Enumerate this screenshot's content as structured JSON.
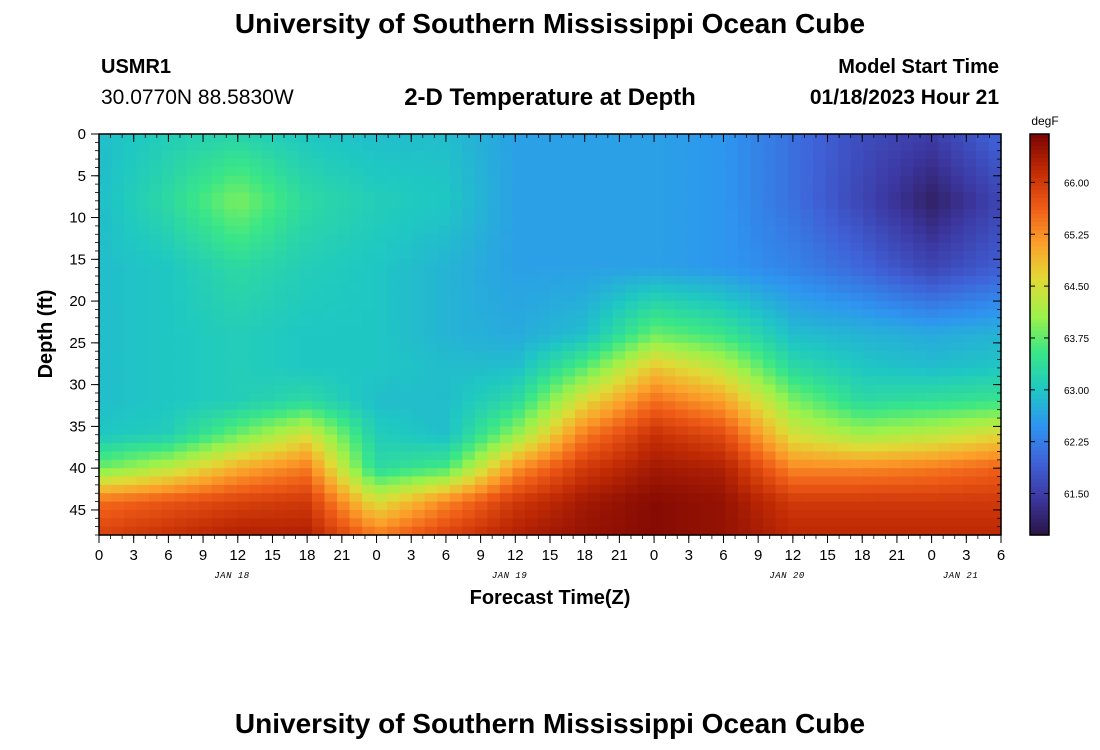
{
  "page": {
    "title": "University of Southern Mississippi Ocean Cube",
    "bottom_title": "University of Southern Mississippi Ocean Cube",
    "station_id": "USMR1",
    "coordinates": "30.0770N  88.5830W",
    "subtitle": "2-D Temperature at Depth",
    "model_start_label": "Model Start Time",
    "model_start_value": "01/18/2023 Hour 21"
  },
  "chart_data": {
    "type": "heatmap",
    "title": "2-D Temperature at Depth",
    "xlabel": "Forecast Time(Z)",
    "ylabel": "Depth (ft)",
    "x_range_hours": [
      0,
      78
    ],
    "x_tick_hours": [
      0,
      3,
      6,
      9,
      12,
      15,
      18,
      21,
      24,
      27,
      30,
      33,
      36,
      39,
      42,
      45,
      48,
      51,
      54,
      57,
      60,
      63,
      66,
      69,
      72,
      75,
      78
    ],
    "x_tick_labels": [
      "0",
      "3",
      "6",
      "9",
      "12",
      "15",
      "18",
      "21",
      "0",
      "3",
      "6",
      "9",
      "12",
      "15",
      "18",
      "21",
      "0",
      "3",
      "6",
      "9",
      "12",
      "15",
      "18",
      "21",
      "0",
      "3",
      "6"
    ],
    "date_labels": [
      {
        "hour": 11.5,
        "label": "JAN 18"
      },
      {
        "hour": 35.5,
        "label": "JAN 19"
      },
      {
        "hour": 59.5,
        "label": "JAN 20"
      },
      {
        "hour": 74.5,
        "label": "JAN 21"
      }
    ],
    "y_range_ft": [
      0,
      48
    ],
    "y_ticks": [
      0,
      5,
      10,
      15,
      20,
      25,
      30,
      35,
      40,
      45
    ],
    "y_inverted": true,
    "colorbar": {
      "units": "degF",
      "range": [
        60.9,
        66.7
      ],
      "ticks": [
        61.5,
        62.25,
        63.0,
        63.75,
        64.5,
        65.25,
        66.0
      ],
      "tick_labels": [
        "61.50",
        "62.25",
        "63.00",
        "63.75",
        "64.50",
        "65.25",
        "66.00"
      ],
      "colormap": [
        "#2a1443",
        "#3c37a0",
        "#3f62d8",
        "#2e95f0",
        "#1fc8c2",
        "#3ae687",
        "#9cf24a",
        "#e0da36",
        "#fca02a",
        "#ee5a16",
        "#c02a04",
        "#7a0403"
      ]
    },
    "grid": {
      "hours": [
        0,
        6,
        12,
        18,
        24,
        30,
        36,
        42,
        48,
        54,
        60,
        66,
        72,
        78
      ],
      "depths": [
        0,
        8,
        16,
        24,
        28,
        32,
        36,
        40,
        44,
        48
      ],
      "values": [
        [
          62.9,
          63.1,
          63.2,
          63.0,
          62.9,
          62.9,
          62.6,
          62.6,
          62.6,
          62.5,
          62.1,
          61.7,
          61.5,
          62.0
        ],
        [
          62.9,
          63.3,
          63.9,
          63.3,
          63.1,
          63.0,
          62.6,
          62.6,
          62.6,
          62.5,
          62.1,
          61.6,
          61.1,
          61.6
        ],
        [
          62.9,
          63.0,
          63.3,
          63.1,
          63.0,
          62.8,
          62.6,
          62.6,
          62.6,
          62.5,
          62.3,
          62.0,
          61.6,
          61.9
        ],
        [
          62.9,
          63.0,
          63.1,
          63.0,
          63.0,
          62.8,
          62.7,
          62.9,
          63.8,
          63.5,
          62.9,
          62.8,
          62.7,
          62.8
        ],
        [
          62.9,
          63.0,
          63.1,
          63.0,
          63.0,
          62.9,
          62.9,
          63.7,
          64.8,
          64.3,
          63.3,
          63.0,
          62.9,
          63.0
        ],
        [
          62.9,
          63.0,
          63.1,
          63.3,
          62.9,
          62.9,
          63.3,
          64.6,
          65.5,
          65.1,
          63.9,
          63.3,
          63.4,
          63.5
        ],
        [
          63.0,
          63.1,
          63.8,
          64.5,
          63.1,
          62.9,
          64.0,
          65.4,
          66.1,
          65.8,
          64.5,
          64.1,
          64.3,
          64.6
        ],
        [
          63.8,
          64.3,
          65.0,
          65.4,
          63.3,
          63.6,
          65.2,
          66.0,
          66.4,
          66.3,
          65.3,
          65.3,
          65.4,
          65.6
        ],
        [
          65.5,
          65.7,
          65.9,
          66.0,
          64.5,
          65.3,
          66.0,
          66.4,
          66.6,
          66.5,
          66.0,
          66.0,
          66.0,
          66.0
        ],
        [
          65.9,
          66.1,
          66.3,
          66.3,
          65.4,
          65.9,
          66.3,
          66.5,
          66.6,
          66.5,
          66.2,
          66.2,
          66.2,
          66.2
        ]
      ]
    }
  }
}
